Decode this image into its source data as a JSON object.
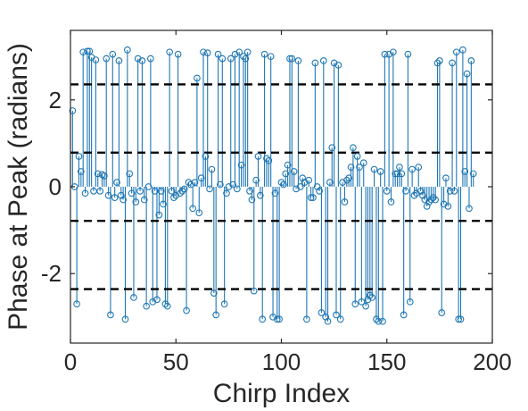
{
  "chart_data": {
    "type": "stem",
    "title": "",
    "xlabel": "Chirp Index",
    "ylabel": "Phase at Peak (radians)",
    "xlim": [
      0,
      200
    ],
    "ylim": [
      -3.6,
      3.6
    ],
    "xticks": [
      0,
      50,
      100,
      150,
      200
    ],
    "xtick_labels": [
      "0",
      "50",
      "100",
      "150",
      "200"
    ],
    "yticks": [
      -2,
      0,
      2
    ],
    "ytick_labels": [
      "-2",
      "0",
      "2"
    ],
    "grid": false,
    "box": true,
    "colors": {
      "stem": "#1f77b4",
      "reference": "#000000",
      "axis": "#262626"
    },
    "reference_lines": {
      "style": "dashed",
      "y": [
        2.356,
        0.785,
        -0.785,
        -2.356
      ]
    },
    "series": [
      {
        "marker": "open-circle",
        "x": [
          1,
          2,
          3,
          4,
          5,
          6,
          7,
          8,
          9,
          10,
          11,
          12,
          13,
          14,
          15,
          16,
          17,
          18,
          19,
          20,
          21,
          22,
          23,
          24,
          25,
          26,
          27,
          28,
          29,
          30,
          31,
          32,
          33,
          34,
          35,
          36,
          37,
          38,
          39,
          40,
          41,
          42,
          43,
          44,
          45,
          46,
          47,
          48,
          49,
          50,
          51,
          52,
          53,
          54,
          55,
          56,
          57,
          58,
          59,
          60,
          61,
          62,
          63,
          64,
          65,
          66,
          67,
          68,
          69,
          70,
          71,
          72,
          73,
          74,
          75,
          76,
          77,
          78,
          79,
          80,
          81,
          82,
          83,
          84,
          85,
          86,
          87,
          88,
          89,
          90,
          91,
          92,
          93,
          94,
          95,
          96,
          97,
          98,
          99,
          100,
          101,
          102,
          103,
          104,
          105,
          106,
          107,
          108,
          109,
          110,
          111,
          112,
          113,
          114,
          115,
          116,
          117,
          118,
          119,
          120,
          121,
          122,
          123,
          124,
          125,
          126,
          127,
          128,
          129,
          130,
          131,
          132,
          133,
          134,
          135,
          136,
          137,
          138,
          139,
          140,
          141,
          142,
          143,
          144,
          145,
          146,
          147,
          148,
          149,
          150,
          151,
          152,
          153,
          154,
          155,
          156,
          157,
          158,
          159,
          160,
          161,
          162,
          163,
          164,
          165,
          166,
          167,
          168,
          169,
          170,
          171,
          172,
          173,
          174,
          175,
          176,
          177,
          178,
          179,
          180,
          181,
          182,
          183,
          184,
          185,
          186,
          187,
          188,
          189,
          190,
          191
        ],
        "y": [
          1.75,
          0.0,
          -2.7,
          0.7,
          0.35,
          3.1,
          -0.15,
          3.12,
          3.12,
          2.98,
          -0.1,
          2.92,
          0.3,
          -0.1,
          0.28,
          0.25,
          2.95,
          -0.2,
          -2.95,
          3.05,
          -0.25,
          0.1,
          2.9,
          -0.2,
          -0.3,
          -3.05,
          3.15,
          0.3,
          -0.15,
          -2.55,
          -0.35,
          2.95,
          -0.1,
          2.9,
          -0.3,
          -2.75,
          0.0,
          2.95,
          -2.65,
          -0.1,
          -2.6,
          -0.65,
          -0.1,
          -0.4,
          -2.7,
          -2.75,
          3.1,
          -0.1,
          -0.25,
          -0.2,
          3.05,
          -0.15,
          -0.1,
          -0.05,
          -2.85,
          0.1,
          0.05,
          -0.5,
          0.1,
          2.5,
          -0.6,
          0.2,
          3.1,
          0.7,
          3.08,
          -0.05,
          0.4,
          -2.45,
          -2.95,
          3.05,
          0.05,
          2.95,
          -2.7,
          -0.15,
          0.0,
          2.95,
          0.05,
          3.05,
          -0.05,
          3.1,
          0.5,
          3.0,
          2.95,
          3.1,
          -0.1,
          -0.3,
          -2.4,
          0.15,
          0.7,
          -0.2,
          -3.05,
          3.05,
          0.65,
          0.6,
          3.0,
          -3.0,
          -0.15,
          -3.05,
          -3.05,
          0.1,
          0.05,
          0.3,
          0.5,
          2.95,
          2.95,
          0.35,
          -0.05,
          2.9,
          0.0,
          0.2,
          0.1,
          -3.05,
          0.15,
          -0.25,
          -0.25,
          2.85,
          0.0,
          -0.1,
          -2.9,
          2.9,
          -3.0,
          -3.1,
          0.1,
          0.9,
          2.85,
          -2.95,
          2.8,
          -3.05,
          0.1,
          -0.35,
          0.15,
          0.2,
          0.45,
          0.9,
          -2.7,
          0.7,
          0.45,
          -2.65,
          0.55,
          -2.75,
          -2.6,
          -2.5,
          -2.55,
          0.4,
          -3.05,
          -3.1,
          0.35,
          -3.1,
          3.05,
          -0.1,
          3.05,
          -0.35,
          3.1,
          0.3,
          0.3,
          0.45,
          0.3,
          -2.95,
          -0.1,
          3.05,
          -2.65,
          0.4,
          -0.2,
          -0.15,
          0.45,
          -0.1,
          -0.2,
          -0.3,
          -0.45,
          -0.35,
          -0.3,
          -0.25,
          -0.3,
          2.85,
          2.9,
          -2.9,
          -0.4,
          0.2,
          -0.45,
          -0.1,
          2.85,
          -0.1,
          3.1,
          -3.05,
          -3.05,
          3.15,
          0.35,
          2.6,
          -0.5,
          2.9,
          0.3
        ]
      }
    ]
  }
}
